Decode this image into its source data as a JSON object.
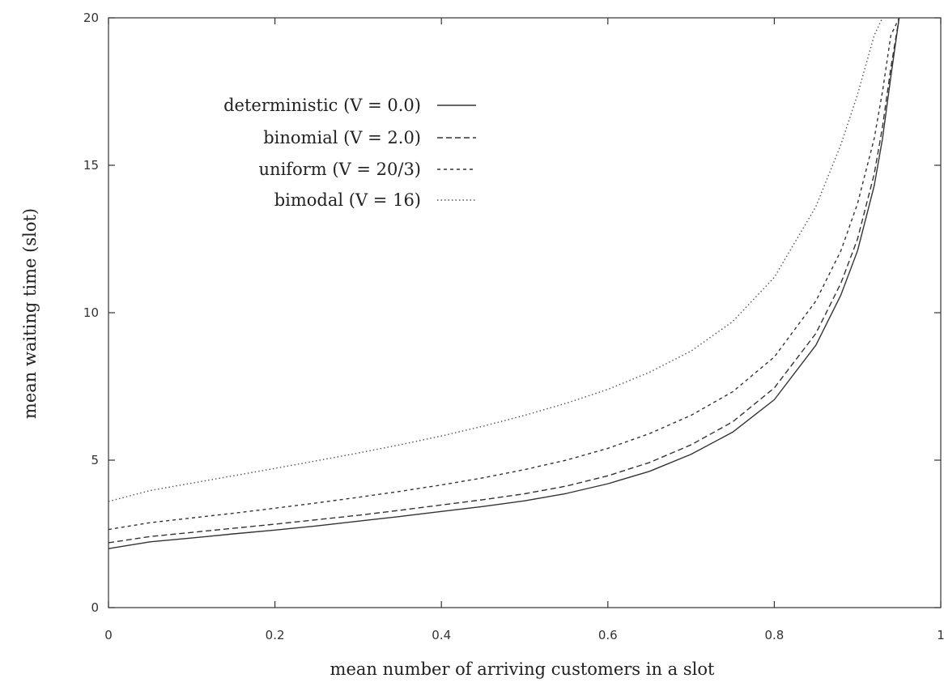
{
  "chart_data": {
    "type": "line",
    "title": "",
    "xlabel": "mean number of arriving customers in a slot",
    "ylabel": "mean waiting time (slot)",
    "xlim": [
      0,
      1
    ],
    "ylim": [
      0,
      20
    ],
    "x_ticks": [
      "0",
      "0.2",
      "0.4",
      "0.6",
      "0.8",
      "1"
    ],
    "y_ticks": [
      "0",
      "5",
      "10",
      "15",
      "20"
    ],
    "grid": false,
    "legend_position": "top-left",
    "x": [
      0,
      0.05,
      0.1,
      0.15,
      0.2,
      0.25,
      0.3,
      0.35,
      0.4,
      0.45,
      0.5,
      0.55,
      0.6,
      0.65,
      0.7,
      0.75,
      0.8,
      0.85,
      0.88,
      0.9,
      0.92,
      0.93,
      0.94,
      0.95
    ],
    "series": [
      {
        "name": "deterministic (V = 0.0)",
        "dash": "solid",
        "color": "#333333",
        "values": [
          2.0,
          2.23,
          2.36,
          2.5,
          2.63,
          2.77,
          2.93,
          3.09,
          3.26,
          3.43,
          3.62,
          3.87,
          4.2,
          4.62,
          5.2,
          5.95,
          7.05,
          8.9,
          10.6,
          12.1,
          14.3,
          15.9,
          18.0,
          20.0
        ]
      },
      {
        "name": "binomial (V = 2.0)",
        "dash": "dashed",
        "color": "#333333",
        "values": [
          2.2,
          2.41,
          2.55,
          2.69,
          2.83,
          2.98,
          3.13,
          3.3,
          3.48,
          3.66,
          3.86,
          4.12,
          4.47,
          4.92,
          5.52,
          6.3,
          7.45,
          9.3,
          11.0,
          12.5,
          14.7,
          16.3,
          18.3,
          20.0
        ]
      },
      {
        "name": "uniform (V = 20/3)",
        "dash": "short-dashed",
        "color": "#333333",
        "values": [
          2.65,
          2.88,
          3.04,
          3.2,
          3.37,
          3.55,
          3.74,
          3.94,
          4.16,
          4.4,
          4.68,
          5.0,
          5.4,
          5.9,
          6.52,
          7.32,
          8.5,
          10.4,
          12.1,
          13.7,
          15.9,
          17.5,
          19.4,
          20.0
        ]
      },
      {
        "name": "bimodal (V = 16)",
        "dash": "dotted",
        "color": "#555555",
        "values": [
          3.6,
          3.97,
          4.22,
          4.47,
          4.72,
          4.98,
          5.24,
          5.52,
          5.82,
          6.15,
          6.52,
          6.93,
          7.4,
          7.98,
          8.7,
          9.7,
          11.2,
          13.6,
          15.7,
          17.4,
          19.4,
          20.0,
          null,
          null
        ]
      }
    ]
  }
}
